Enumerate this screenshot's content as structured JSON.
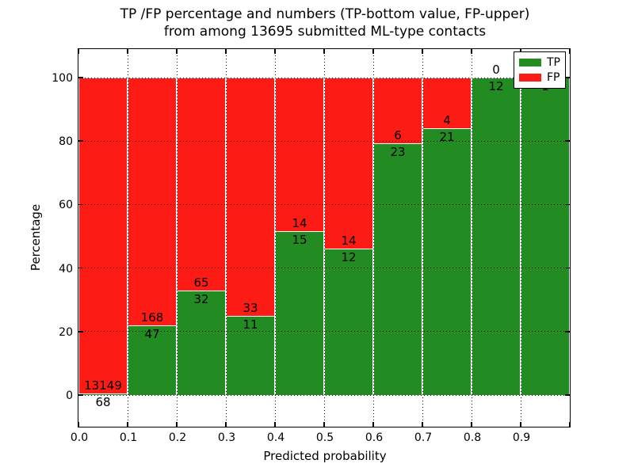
{
  "figure": {
    "title_line1": "TP /FP percentage and numbers (TP-bottom value, FP-upper)",
    "title_line2": "from among 13695 submitted ML-type contacts",
    "xlabel": "Predicted probability",
    "ylabel": "Percentage"
  },
  "legend": {
    "position": "upper right",
    "items": [
      {
        "label": "TP",
        "color": "#228b22"
      },
      {
        "label": "FP",
        "color": "#fd1b15"
      }
    ]
  },
  "chart_data": {
    "type": "bar",
    "subtype": "stacked-percentage-histogram",
    "title": "TP /FP percentage and numbers (TP-bottom value, FP-upper) from among 13695 submitted ML-type contacts",
    "xlabel": "Predicted probability",
    "ylabel": "Percentage",
    "total_submitted_contacts": 13695,
    "grid": true,
    "grid_style": "dotted",
    "xlim": [
      0.0,
      1.0
    ],
    "ylim": [
      -10,
      110
    ],
    "bin_width": 0.1,
    "xtick_labels": [
      "0.0",
      "0.1",
      "0.2",
      "0.3",
      "0.4",
      "0.5",
      "0.6",
      "0.7",
      "0.8",
      "0.9"
    ],
    "ytick_values": [
      0,
      20,
      40,
      60,
      80,
      100
    ],
    "series": [
      {
        "name": "TP",
        "color": "#228b22",
        "stack_position": "bottom"
      },
      {
        "name": "FP",
        "color": "#fd1b15",
        "stack_position": "top"
      }
    ],
    "bins": [
      {
        "x_range": [
          0.0,
          0.1
        ],
        "tp": 68,
        "fp": 13149,
        "tp_pct": 0.51
      },
      {
        "x_range": [
          0.1,
          0.2
        ],
        "tp": 47,
        "fp": 168,
        "tp_pct": 21.86
      },
      {
        "x_range": [
          0.2,
          0.3
        ],
        "tp": 32,
        "fp": 65,
        "tp_pct": 32.99
      },
      {
        "x_range": [
          0.3,
          0.4
        ],
        "tp": 11,
        "fp": 33,
        "tp_pct": 25.0
      },
      {
        "x_range": [
          0.4,
          0.5
        ],
        "tp": 15,
        "fp": 14,
        "tp_pct": 51.72
      },
      {
        "x_range": [
          0.5,
          0.6
        ],
        "tp": 12,
        "fp": 14,
        "tp_pct": 46.15
      },
      {
        "x_range": [
          0.6,
          0.7
        ],
        "tp": 23,
        "fp": 6,
        "tp_pct": 79.31
      },
      {
        "x_range": [
          0.7,
          0.8
        ],
        "tp": 21,
        "fp": 4,
        "tp_pct": 84.0
      },
      {
        "x_range": [
          0.8,
          0.9
        ],
        "tp": 12,
        "fp": 0,
        "tp_pct": 100.0
      },
      {
        "x_range": [
          0.9,
          1.0
        ],
        "tp": 1,
        "fp": 0,
        "tp_pct": 100.0
      }
    ]
  }
}
